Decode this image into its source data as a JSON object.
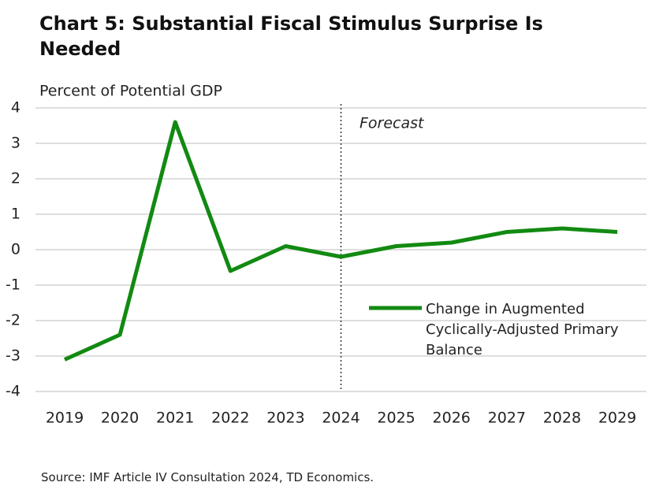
{
  "chart_data": {
    "type": "line",
    "title": "Chart 5: Substantial Fiscal Stimulus Surprise Is Needed",
    "y_label": "Percent of Potential GDP",
    "source": "Source: IMF Article IV Consultation 2024, TD Economics.",
    "annotation": "Forecast",
    "forecast_start": "2024",
    "categories": [
      "2019",
      "2020",
      "2021",
      "2022",
      "2023",
      "2024",
      "2025",
      "2026",
      "2027",
      "2028",
      "2029"
    ],
    "series": [
      {
        "name": "Change in Augmented Cyclically-Adjusted Primary Balance",
        "color": "#128a12",
        "values": [
          -3.1,
          -2.4,
          3.6,
          -0.6,
          0.1,
          -0.2,
          0.1,
          0.2,
          0.5,
          0.6,
          0.5
        ]
      }
    ],
    "ylim": [
      -4,
      4
    ],
    "yticks": [
      -4,
      -3,
      -2,
      -1,
      0,
      1,
      2,
      3,
      4
    ],
    "grid": true
  }
}
